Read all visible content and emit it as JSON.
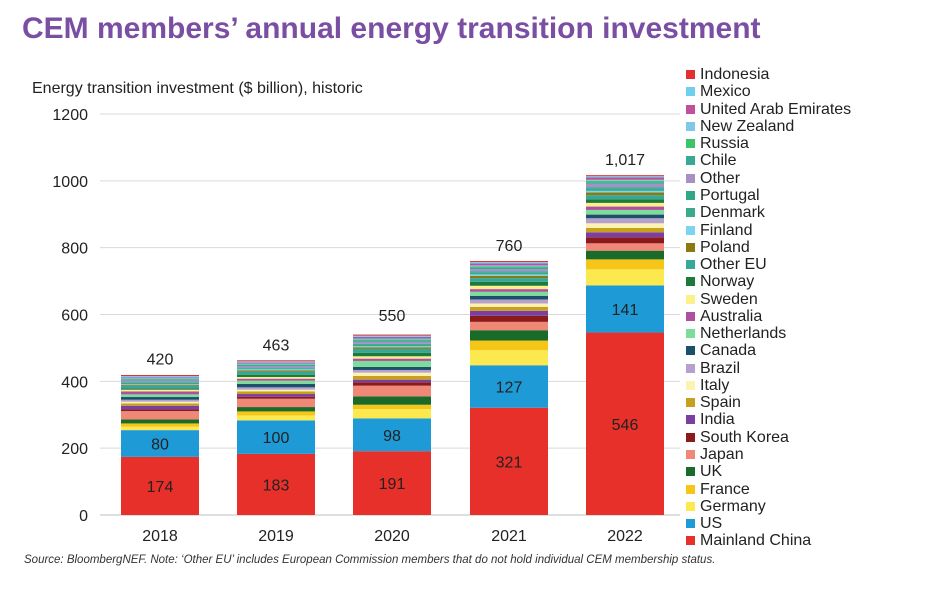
{
  "title": "CEM members’ annual energy transition investment",
  "source_note": "Source: BloombergNEF. Note: ‘Other EU’ includes European Commission members that do not hold individual CEM membership status.",
  "chart_data": {
    "type": "bar",
    "stacked": true,
    "title": "CEM members’ annual energy transition investment",
    "ylabel": "Energy transition investment ($ billion), historic",
    "xlabel": "",
    "ylim": [
      0,
      1200
    ],
    "yticks": [
      0,
      200,
      400,
      600,
      800,
      1000,
      1200
    ],
    "grid": true,
    "legend_position": "right",
    "categories": [
      "2018",
      "2019",
      "2020",
      "2021",
      "2022"
    ],
    "totals": [
      420,
      463,
      550,
      760,
      1017
    ],
    "total_labels": [
      "420",
      "463",
      "550",
      "760",
      "1,017"
    ],
    "series": [
      {
        "name": "Mainland China",
        "color": "#e8302a",
        "values": [
          174,
          183,
          191,
          321,
          546
        ],
        "labeled": true
      },
      {
        "name": "US",
        "color": "#1e9ad6",
        "values": [
          80,
          100,
          98,
          127,
          141
        ],
        "labeled": true
      },
      {
        "name": "Germany",
        "color": "#fce94f",
        "values": [
          10,
          15,
          28,
          45,
          48
        ],
        "labeled": false
      },
      {
        "name": "France",
        "color": "#f5c518",
        "values": [
          10,
          12,
          13,
          29,
          30
        ],
        "labeled": false
      },
      {
        "name": "UK",
        "color": "#1a6b2a",
        "values": [
          12,
          13,
          25,
          31,
          26
        ],
        "labeled": false
      },
      {
        "name": "Japan",
        "color": "#f08878",
        "values": [
          25,
          25,
          32,
          25,
          22
        ],
        "labeled": false
      },
      {
        "name": "South Korea",
        "color": "#8b1a1a",
        "values": [
          5,
          6,
          10,
          18,
          18
        ],
        "labeled": false
      },
      {
        "name": "India",
        "color": "#7b3fa0",
        "values": [
          11,
          8,
          8,
          15,
          15
        ],
        "labeled": false
      },
      {
        "name": "Spain",
        "color": "#c8a020",
        "values": [
          7,
          8,
          11,
          12,
          13
        ],
        "labeled": false
      },
      {
        "name": "Italy",
        "color": "#fcf3b0",
        "values": [
          5,
          5,
          10,
          10,
          14
        ],
        "labeled": false
      },
      {
        "name": "Brazil",
        "color": "#b6a1cc",
        "values": [
          6,
          7,
          8,
          12,
          15
        ],
        "labeled": false
      },
      {
        "name": "Canada",
        "color": "#1b4f6b",
        "values": [
          8,
          10,
          9,
          11,
          11
        ],
        "labeled": false
      },
      {
        "name": "Netherlands",
        "color": "#7ddc9a",
        "values": [
          8,
          10,
          18,
          12,
          14
        ],
        "labeled": false
      },
      {
        "name": "Australia",
        "color": "#b04fa0",
        "values": [
          9,
          6,
          7,
          8,
          10
        ],
        "labeled": false
      },
      {
        "name": "Sweden",
        "color": "#fcf08a",
        "values": [
          5,
          5,
          7,
          10,
          11
        ],
        "labeled": false
      },
      {
        "name": "Norway",
        "color": "#1e7a3a",
        "values": [
          4,
          6,
          10,
          12,
          11
        ],
        "labeled": false
      },
      {
        "name": "Other EU",
        "color": "#36a89a",
        "values": [
          8,
          10,
          12,
          11,
          12
        ],
        "labeled": false
      },
      {
        "name": "Poland",
        "color": "#8b7a10",
        "values": [
          3,
          4,
          5,
          7,
          8
        ],
        "labeled": false
      },
      {
        "name": "Finland",
        "color": "#7ed3f2",
        "values": [
          2,
          3,
          3,
          4,
          5
        ],
        "labeled": false
      },
      {
        "name": "Denmark",
        "color": "#3aaa8a",
        "values": [
          3,
          3,
          4,
          5,
          6
        ],
        "labeled": false
      },
      {
        "name": "Portugal",
        "color": "#2ea888",
        "values": [
          2,
          2,
          3,
          4,
          5
        ],
        "labeled": false
      },
      {
        "name": "Other",
        "color": "#a78fc8",
        "values": [
          5,
          5,
          6,
          7,
          10
        ],
        "labeled": false
      },
      {
        "name": "Chile",
        "color": "#3aa896",
        "values": [
          3,
          3,
          4,
          5,
          5
        ],
        "labeled": false
      },
      {
        "name": "Russia",
        "color": "#3bc46a",
        "values": [
          2,
          2,
          3,
          3,
          4
        ],
        "labeled": false
      },
      {
        "name": "New Zealand",
        "color": "#7ec8e8",
        "values": [
          2,
          2,
          3,
          3,
          3
        ],
        "labeled": false
      },
      {
        "name": "United Arab Emirates",
        "color": "#c0509a",
        "values": [
          3,
          3,
          5,
          6,
          7
        ],
        "labeled": false
      },
      {
        "name": "Mexico",
        "color": "#6ecff0",
        "values": [
          4,
          4,
          4,
          4,
          4
        ],
        "labeled": false
      },
      {
        "name": "Indonesia",
        "color": "#e03030",
        "values": [
          3,
          3,
          3,
          3,
          3
        ],
        "labeled": false
      }
    ]
  }
}
